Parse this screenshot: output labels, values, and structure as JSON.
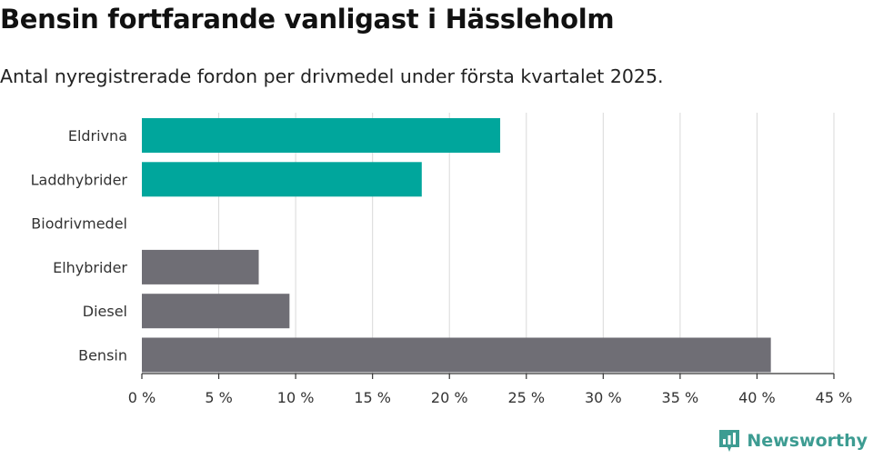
{
  "header": {
    "title": "Bensin fortfarande vanligast i Hässleholm",
    "subtitle": "Antal nyregistrerade fordon per drivmedel under första kvartalet 2025."
  },
  "colors": {
    "accent": "#00a69c",
    "neutral": "#6f6e75",
    "grid": "#d9d9d9",
    "axis": "#333333",
    "brand": "#3d9c92"
  },
  "chart_data": {
    "type": "bar",
    "orientation": "horizontal",
    "title": "Bensin fortfarande vanligast i Hässleholm",
    "subtitle": "Antal nyregistrerade fordon per drivmedel under första kvartalet 2025.",
    "categories": [
      "Eldrivna",
      "Laddhybrider",
      "Biodrivmedel",
      "Elhybrider",
      "Diesel",
      "Bensin"
    ],
    "values": [
      23.3,
      18.2,
      0,
      7.6,
      9.6,
      40.9
    ],
    "bar_colors": [
      "accent",
      "accent",
      "neutral",
      "neutral",
      "neutral",
      "neutral"
    ],
    "xlim": [
      0,
      45
    ],
    "x_ticks": [
      0,
      5,
      10,
      15,
      20,
      25,
      30,
      35,
      40,
      45
    ],
    "x_tick_labels": [
      "0 %",
      "5 %",
      "10 %",
      "15 %",
      "20 %",
      "25 %",
      "30 %",
      "35 %",
      "40 %",
      "45 %"
    ],
    "grid": true
  },
  "branding": {
    "logo_text": "Newsworthy",
    "logo_icon": "bar-chart-bubble-icon"
  }
}
